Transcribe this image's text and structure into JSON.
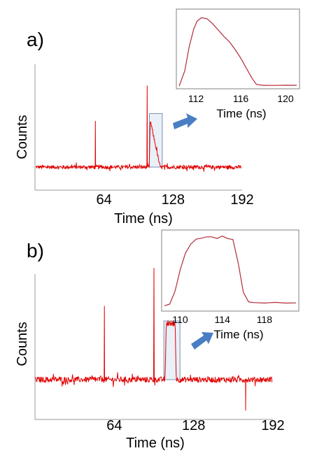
{
  "colors": {
    "trace": "#e00000",
    "axis": "#9a9a9a",
    "inset_trace": "#b22a3a",
    "inset_border": "#808080",
    "highlight_box": "#eaf0f8",
    "highlight_edge": "#7a8fb0",
    "arrow": "#4a7ec4"
  },
  "icons": {
    "arrow": "arrow-right-icon"
  },
  "chart_data": [
    {
      "id": "a",
      "panel_label": "a)",
      "type": "line",
      "xlabel": "Time (ns)",
      "ylabel": "Counts",
      "xlim": [
        0,
        192
      ],
      "xticks": [
        "64",
        "128",
        "192"
      ],
      "xtick_values": [
        64,
        128,
        192
      ],
      "baseline": 1.0,
      "noise": 0.12,
      "peaks": [
        {
          "x": 56,
          "height": 3.0
        },
        {
          "x": 104,
          "height": 5.3
        }
      ],
      "pulse": {
        "start": 106,
        "end": 116,
        "height": 3.3
      },
      "highlight": {
        "x_start": 106,
        "x_end": 118
      },
      "inset": {
        "type": "line",
        "xlabel": "Time (ns)",
        "xticks": [
          "112",
          "116",
          "120"
        ],
        "xtick_values": [
          112,
          116,
          120
        ],
        "xlim": [
          110.5,
          121
        ],
        "points": [
          [
            110.5,
            0.02
          ],
          [
            111.0,
            0.22
          ],
          [
            111.4,
            0.55
          ],
          [
            111.8,
            0.8
          ],
          [
            112.1,
            0.9
          ],
          [
            112.5,
            0.95
          ],
          [
            113.0,
            0.93
          ],
          [
            113.5,
            0.86
          ],
          [
            114.0,
            0.78
          ],
          [
            114.5,
            0.7
          ],
          [
            115.0,
            0.62
          ],
          [
            115.5,
            0.52
          ],
          [
            116.0,
            0.4
          ],
          [
            116.5,
            0.26
          ],
          [
            117.0,
            0.12
          ],
          [
            117.4,
            0.04
          ],
          [
            118.0,
            0.03
          ],
          [
            119.0,
            0.03
          ],
          [
            120.0,
            0.03
          ],
          [
            121.0,
            0.03
          ]
        ]
      }
    },
    {
      "id": "b",
      "panel_label": "b)",
      "type": "line",
      "xlabel": "Time (ns)",
      "ylabel": "Counts",
      "xlim": [
        0,
        192
      ],
      "xticks": [
        "64",
        "128",
        "192"
      ],
      "xtick_values": [
        64,
        128,
        192
      ],
      "baseline": 1.0,
      "noise": 0.12,
      "peaks": [
        {
          "x": 56,
          "height": 3.1
        },
        {
          "x": 96,
          "height": 4.7
        }
      ],
      "dips": [
        {
          "x": 170,
          "depth": 1.3
        }
      ],
      "pulse": {
        "start": 105,
        "end": 114,
        "height": 2.35
      },
      "highlight": {
        "x_start": 104,
        "x_end": 117
      },
      "inset": {
        "type": "line",
        "xlabel": "Time (ns)",
        "xticks": [
          "110",
          "114",
          "118"
        ],
        "xtick_values": [
          110,
          114,
          118
        ],
        "xlim": [
          108.5,
          121
        ],
        "points": [
          [
            108.5,
            0.02
          ],
          [
            109.0,
            0.04
          ],
          [
            109.5,
            0.22
          ],
          [
            110.0,
            0.5
          ],
          [
            110.5,
            0.72
          ],
          [
            111.0,
            0.84
          ],
          [
            111.5,
            0.9
          ],
          [
            112.0,
            0.92
          ],
          [
            112.5,
            0.93
          ],
          [
            113.0,
            0.94
          ],
          [
            113.5,
            0.92
          ],
          [
            114.0,
            0.94
          ],
          [
            114.5,
            0.92
          ],
          [
            115.0,
            0.9
          ],
          [
            115.5,
            0.6
          ],
          [
            116.0,
            0.2
          ],
          [
            116.5,
            0.08
          ],
          [
            117.0,
            0.06
          ],
          [
            118.0,
            0.06
          ],
          [
            119.0,
            0.07
          ],
          [
            120.0,
            0.06
          ],
          [
            121.0,
            0.06
          ]
        ]
      }
    }
  ]
}
